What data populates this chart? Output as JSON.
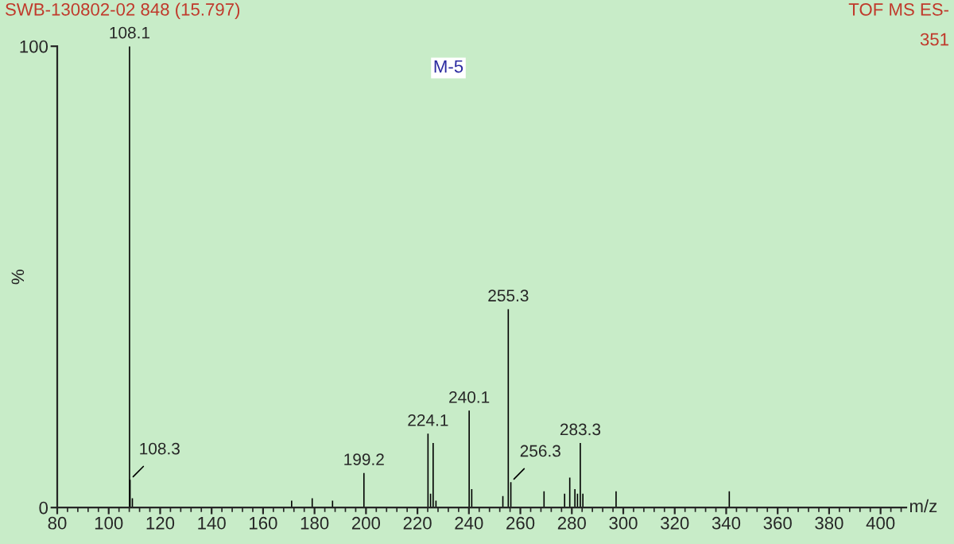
{
  "chart_data": {
    "type": "bar",
    "title": "SWB-130802-02 848 (15.797)",
    "xlabel": "m/z",
    "ylabel": "%",
    "annotations": [
      "TOF MS ES-",
      "351",
      "M-5",
      {
        "text": "108.1",
        "x": 108.1,
        "y": 100
      },
      {
        "text": "108.3",
        "x": 108.3,
        "y": 6
      },
      {
        "text": "199.2",
        "x": 199.2,
        "y": 7.5
      },
      {
        "text": "224.1",
        "x": 224.1,
        "y": 16
      },
      {
        "text": "240.1",
        "x": 240.1,
        "y": 21
      },
      {
        "text": "255.3",
        "x": 255.3,
        "y": 43
      },
      {
        "text": "256.3",
        "x": 256.3,
        "y": 5.5
      },
      {
        "text": "283.3",
        "x": 283.3,
        "y": 14
      }
    ],
    "x": [
      108.1,
      108.3,
      109.2,
      171.1,
      179.1,
      187.0,
      199.2,
      224.1,
      225.1,
      226.1,
      227.2,
      240.1,
      241.1,
      253.2,
      255.3,
      256.3,
      269.2,
      277.2,
      279.2,
      281.2,
      282.2,
      283.3,
      284.3,
      297.2,
      341.2
    ],
    "values": [
      100,
      6,
      2,
      1.5,
      2,
      1.5,
      7.5,
      16,
      3,
      14,
      1.5,
      21,
      4,
      2.5,
      43,
      5.5,
      3.5,
      3,
      6.5,
      4,
      3,
      14,
      3,
      3.5,
      3.5
    ],
    "color": "#000000",
    "xlim": [
      80,
      410
    ],
    "ylim": [
      0,
      100
    ],
    "xticks": [
      80,
      100,
      120,
      140,
      160,
      180,
      200,
      220,
      240,
      260,
      280,
      300,
      320,
      340,
      360,
      380,
      400
    ],
    "yticks": [
      0,
      100
    ],
    "grid": false
  }
}
